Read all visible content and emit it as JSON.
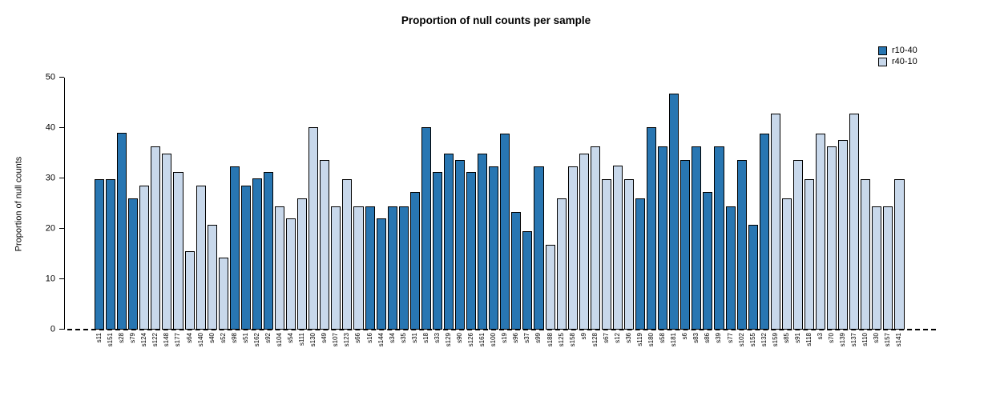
{
  "chart_data": {
    "type": "bar",
    "title": "Proportion of null counts per sample",
    "xlabel": "",
    "ylabel": "Proportion of null counts",
    "ylim": [
      0,
      50
    ],
    "yticks": [
      0,
      10,
      20,
      30,
      40,
      50
    ],
    "grid": false,
    "legend_position": "top-right",
    "colors": {
      "r10-40": "#2876B2",
      "r40-10": "#C8D8EB"
    },
    "legend": [
      {
        "label": "r10-40",
        "color": "#2876B2"
      },
      {
        "label": "r40-10",
        "color": "#C8D8EB"
      }
    ],
    "bars": [
      {
        "label": "s11",
        "value": 29.8,
        "group": "r10-40"
      },
      {
        "label": "s151",
        "value": 29.8,
        "group": "r10-40"
      },
      {
        "label": "s28",
        "value": 39.0,
        "group": "r10-40"
      },
      {
        "label": "s79",
        "value": 26.0,
        "group": "r10-40"
      },
      {
        "label": "s124",
        "value": 28.6,
        "group": "r40-10"
      },
      {
        "label": "s122",
        "value": 36.4,
        "group": "r40-10"
      },
      {
        "label": "s148",
        "value": 35.0,
        "group": "r40-10"
      },
      {
        "label": "s177",
        "value": 31.2,
        "group": "r40-10"
      },
      {
        "label": "s64",
        "value": 15.6,
        "group": "r40-10"
      },
      {
        "label": "s140",
        "value": 28.5,
        "group": "r40-10"
      },
      {
        "label": "s40",
        "value": 20.8,
        "group": "r40-10"
      },
      {
        "label": "s52",
        "value": 14.3,
        "group": "r40-10"
      },
      {
        "label": "s98",
        "value": 32.4,
        "group": "r10-40"
      },
      {
        "label": "s51",
        "value": 28.6,
        "group": "r10-40"
      },
      {
        "label": "s162",
        "value": 30.0,
        "group": "r10-40"
      },
      {
        "label": "s92",
        "value": 31.2,
        "group": "r10-40"
      },
      {
        "label": "s104",
        "value": 24.5,
        "group": "r40-10"
      },
      {
        "label": "s54",
        "value": 22.1,
        "group": "r40-10"
      },
      {
        "label": "s111",
        "value": 26.1,
        "group": "r40-10"
      },
      {
        "label": "s130",
        "value": 40.2,
        "group": "r40-10"
      },
      {
        "label": "s49",
        "value": 33.7,
        "group": "r40-10"
      },
      {
        "label": "s107",
        "value": 24.5,
        "group": "r40-10"
      },
      {
        "label": "s123",
        "value": 29.8,
        "group": "r40-10"
      },
      {
        "label": "s66",
        "value": 24.5,
        "group": "r40-10"
      },
      {
        "label": "s16",
        "value": 24.5,
        "group": "r10-40"
      },
      {
        "label": "s144",
        "value": 22.1,
        "group": "r10-40"
      },
      {
        "label": "s34",
        "value": 24.5,
        "group": "r10-40"
      },
      {
        "label": "s35",
        "value": 24.5,
        "group": "r10-40"
      },
      {
        "label": "s31",
        "value": 27.3,
        "group": "r10-40"
      },
      {
        "label": "s18",
        "value": 40.1,
        "group": "r10-40"
      },
      {
        "label": "s33",
        "value": 31.2,
        "group": "r10-40"
      },
      {
        "label": "s129",
        "value": 35.0,
        "group": "r10-40"
      },
      {
        "label": "s90",
        "value": 33.7,
        "group": "r10-40"
      },
      {
        "label": "s126",
        "value": 31.2,
        "group": "r10-40"
      },
      {
        "label": "s161",
        "value": 35.0,
        "group": "r10-40"
      },
      {
        "label": "s100",
        "value": 32.4,
        "group": "r10-40"
      },
      {
        "label": "s19",
        "value": 38.9,
        "group": "r10-40"
      },
      {
        "label": "s96",
        "value": 23.4,
        "group": "r10-40"
      },
      {
        "label": "s37",
        "value": 19.6,
        "group": "r10-40"
      },
      {
        "label": "s99",
        "value": 32.4,
        "group": "r10-40"
      },
      {
        "label": "s188",
        "value": 16.9,
        "group": "r40-10"
      },
      {
        "label": "s125",
        "value": 26.0,
        "group": "r40-10"
      },
      {
        "label": "s158",
        "value": 32.4,
        "group": "r40-10"
      },
      {
        "label": "s9",
        "value": 35.0,
        "group": "r40-10"
      },
      {
        "label": "s128",
        "value": 36.4,
        "group": "r40-10"
      },
      {
        "label": "s67",
        "value": 29.9,
        "group": "r40-10"
      },
      {
        "label": "s12",
        "value": 32.5,
        "group": "r40-10"
      },
      {
        "label": "s36",
        "value": 29.8,
        "group": "r40-10"
      },
      {
        "label": "s119",
        "value": 26.0,
        "group": "r10-40"
      },
      {
        "label": "s180",
        "value": 40.2,
        "group": "r10-40"
      },
      {
        "label": "s58",
        "value": 36.4,
        "group": "r10-40"
      },
      {
        "label": "s181",
        "value": 46.8,
        "group": "r10-40"
      },
      {
        "label": "s6",
        "value": 33.7,
        "group": "r10-40"
      },
      {
        "label": "s83",
        "value": 36.3,
        "group": "r10-40"
      },
      {
        "label": "s86",
        "value": 27.3,
        "group": "r10-40"
      },
      {
        "label": "s39",
        "value": 36.4,
        "group": "r10-40"
      },
      {
        "label": "s77",
        "value": 24.5,
        "group": "r10-40"
      },
      {
        "label": "s102",
        "value": 33.7,
        "group": "r10-40"
      },
      {
        "label": "s155",
        "value": 20.8,
        "group": "r10-40"
      },
      {
        "label": "s132",
        "value": 38.9,
        "group": "r10-40"
      },
      {
        "label": "s159",
        "value": 42.8,
        "group": "r40-10"
      },
      {
        "label": "s85",
        "value": 26.0,
        "group": "r40-10"
      },
      {
        "label": "s91",
        "value": 33.7,
        "group": "r40-10"
      },
      {
        "label": "s118",
        "value": 29.9,
        "group": "r40-10"
      },
      {
        "label": "s3",
        "value": 38.9,
        "group": "r40-10"
      },
      {
        "label": "s70",
        "value": 36.3,
        "group": "r40-10"
      },
      {
        "label": "s139",
        "value": 37.6,
        "group": "r40-10"
      },
      {
        "label": "s137",
        "value": 42.8,
        "group": "r40-10"
      },
      {
        "label": "s110",
        "value": 29.8,
        "group": "r40-10"
      },
      {
        "label": "s30",
        "value": 24.5,
        "group": "r40-10"
      },
      {
        "label": "s157",
        "value": 24.5,
        "group": "r40-10"
      },
      {
        "label": "s141",
        "value": 29.8,
        "group": "r40-10"
      }
    ]
  }
}
